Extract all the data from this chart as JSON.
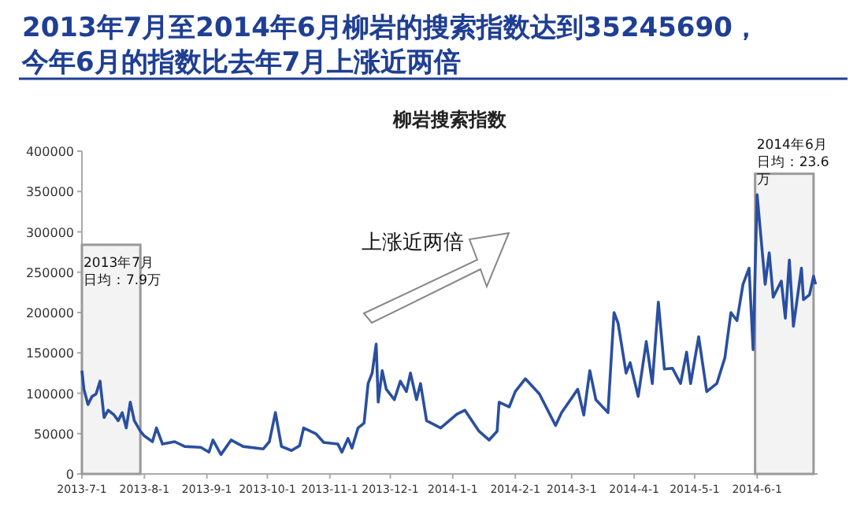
{
  "chart_data": {
    "type": "line",
    "title": "2013年7月至2014年6月柳岩的搜索指数达到35245690，",
    "subtitle": "今年6月的指数比去年7月上涨近两倍",
    "annotations": [
      "柳岩搜索指数",
      "上涨近两倍"
    ],
    "x": [
      "2013-07-01",
      "2013-07-02",
      "2013-07-04",
      "2013-07-06",
      "2013-07-08",
      "2013-07-10",
      "2013-07-12",
      "2013-07-14",
      "2013-07-17",
      "2013-07-19",
      "2013-07-21",
      "2013-07-23",
      "2013-07-25",
      "2013-07-27",
      "2013-07-30",
      "2013-08-01",
      "2013-08-05",
      "2013-08-07",
      "2013-08-10",
      "2013-08-16",
      "2013-08-21",
      "2013-08-29",
      "2013-09-02",
      "2013-09-04",
      "2013-09-08",
      "2013-09-13",
      "2013-09-19",
      "2013-09-29",
      "2013-10-02",
      "2013-10-05",
      "2013-10-08",
      "2013-10-13",
      "2013-10-17",
      "2013-10-19",
      "2013-10-25",
      "2013-10-29",
      "2013-11-05",
      "2013-11-07",
      "2013-11-10",
      "2013-11-12",
      "2013-11-15",
      "2013-11-18",
      "2013-11-20",
      "2013-11-22",
      "2013-11-24",
      "2013-11-25",
      "2013-11-27",
      "2013-11-29",
      "2013-12-03",
      "2013-12-06",
      "2013-12-09",
      "2013-12-11",
      "2013-12-14",
      "2013-12-16",
      "2013-12-19",
      "2013-12-26",
      "2014-01-03",
      "2014-01-07",
      "2014-01-14",
      "2014-01-19",
      "2014-01-23",
      "2014-01-24",
      "2014-01-29",
      "2014-02-01",
      "2014-02-06",
      "2014-02-13",
      "2014-02-21",
      "2014-02-24",
      "2014-03-04",
      "2014-03-07",
      "2014-03-10",
      "2014-03-13",
      "2014-03-19",
      "2014-03-22",
      "2014-03-24",
      "2014-03-28",
      "2014-03-30",
      "2014-04-03",
      "2014-04-07",
      "2014-04-10",
      "2014-04-13",
      "2014-04-16",
      "2014-04-20",
      "2014-04-24",
      "2014-04-27",
      "2014-04-29",
      "2014-05-03",
      "2014-05-07",
      "2014-05-12",
      "2014-05-16",
      "2014-05-19",
      "2014-05-22",
      "2014-05-25",
      "2014-05-28",
      "2014-05-30",
      "2014-06-01",
      "2014-06-05",
      "2014-06-07",
      "2014-06-09",
      "2014-06-13",
      "2014-06-15",
      "2014-06-17",
      "2014-06-19",
      "2014-06-23",
      "2014-06-24",
      "2014-06-27",
      "2014-06-29",
      "2014-06-30"
    ],
    "series": [
      {
        "color": "#2a4fa0",
        "values": [
          128000,
          105000,
          86000,
          96000,
          99000,
          115000,
          70000,
          79000,
          73000,
          66000,
          76000,
          57000,
          89000,
          66000,
          53000,
          47000,
          40000,
          57000,
          37000,
          40000,
          34000,
          33000,
          27000,
          42000,
          24000,
          42000,
          34000,
          31000,
          40000,
          76000,
          34000,
          29000,
          35000,
          57000,
          50000,
          39000,
          37000,
          27000,
          44000,
          32000,
          57000,
          63000,
          112000,
          125000,
          161000,
          89000,
          128000,
          105000,
          92000,
          115000,
          102000,
          125000,
          92000,
          112000,
          66000,
          57000,
          74000,
          79000,
          53000,
          42000,
          53000,
          89000,
          83000,
          102000,
          118000,
          99000,
          60000,
          76000,
          105000,
          73000,
          128000,
          92000,
          76000,
          200000,
          187000,
          125000,
          138000,
          96000,
          164000,
          112000,
          213000,
          130000,
          131000,
          112000,
          151000,
          112000,
          170000,
          102000,
          112000,
          144000,
          200000,
          190000,
          235000,
          255000,
          154000,
          346000,
          235000,
          274000,
          219000,
          239000,
          193000,
          265000,
          183000,
          255000,
          216000,
          222000,
          245000,
          235000
        ]
      }
    ],
    "xlim": [
      "2013-07-01",
      "2014-07-01"
    ],
    "xticks": [
      {
        "value": "2013-07-01",
        "label": "2013-7-1"
      },
      {
        "value": "2013-08-01",
        "label": "2013-8-1"
      },
      {
        "value": "2013-09-01",
        "label": "2013-9-1"
      },
      {
        "value": "2013-10-01",
        "label": "2013-10-1"
      },
      {
        "value": "2013-11-01",
        "label": "2013-11-1"
      },
      {
        "value": "2013-12-01",
        "label": "2013-12-1"
      },
      {
        "value": "2014-01-01",
        "label": "2014-1-1"
      },
      {
        "value": "2014-02-01",
        "label": "2014-2-1"
      },
      {
        "value": "2014-03-01",
        "label": "2014-3-1"
      },
      {
        "value": "2014-04-01",
        "label": "2014-4-1"
      },
      {
        "value": "2014-05-01",
        "label": "2014-5-1"
      },
      {
        "value": "2014-06-01",
        "label": "2014-6-1"
      }
    ],
    "ylim": [
      0,
      400000
    ],
    "yticks": [
      0,
      50000,
      100000,
      150000,
      200000,
      250000,
      300000,
      350000,
      400000
    ],
    "bands": [
      {
        "axis": "x",
        "from": "2013-07-01",
        "to": "2013-07-30",
        "label": "2013年7月日均：7.9万",
        "color": "#999999"
      },
      {
        "axis": "x",
        "from": "2014-05-31",
        "to": "2014-06-29",
        "label": "2014年6月日均：23.6万",
        "color": "#999999"
      }
    ],
    "marker": "none",
    "line_style": "solid"
  }
}
